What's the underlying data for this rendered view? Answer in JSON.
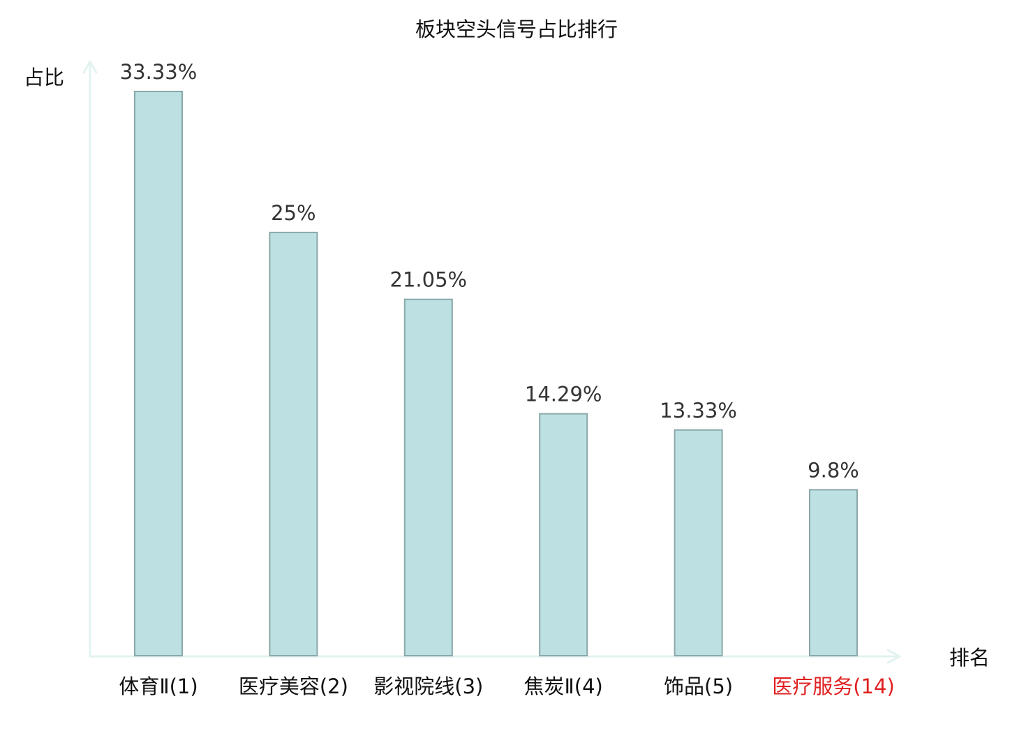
{
  "chart_data": {
    "type": "bar",
    "title": "板块空头信号占比排行",
    "ylabel": "占比",
    "xlabel": "排名",
    "categories": [
      "体育Ⅱ(1)",
      "医疗美容(2)",
      "影视院线(3)",
      "焦炭Ⅱ(4)",
      "饰品(5)",
      "医疗服务(14)"
    ],
    "values": [
      33.33,
      25,
      21.05,
      14.29,
      13.33,
      9.8
    ],
    "value_labels": [
      "33.33%",
      "25%",
      "21.05%",
      "14.29%",
      "13.33%",
      "9.8%"
    ],
    "highlight_index": 5,
    "ylim": [
      0,
      33.33
    ],
    "grid": false,
    "colors": {
      "bar_fill": "#bde0e2",
      "bar_stroke": "#8aa8aa",
      "axis": "#e2f3f0",
      "text": "#333333",
      "highlight_text": "#e02020"
    }
  }
}
